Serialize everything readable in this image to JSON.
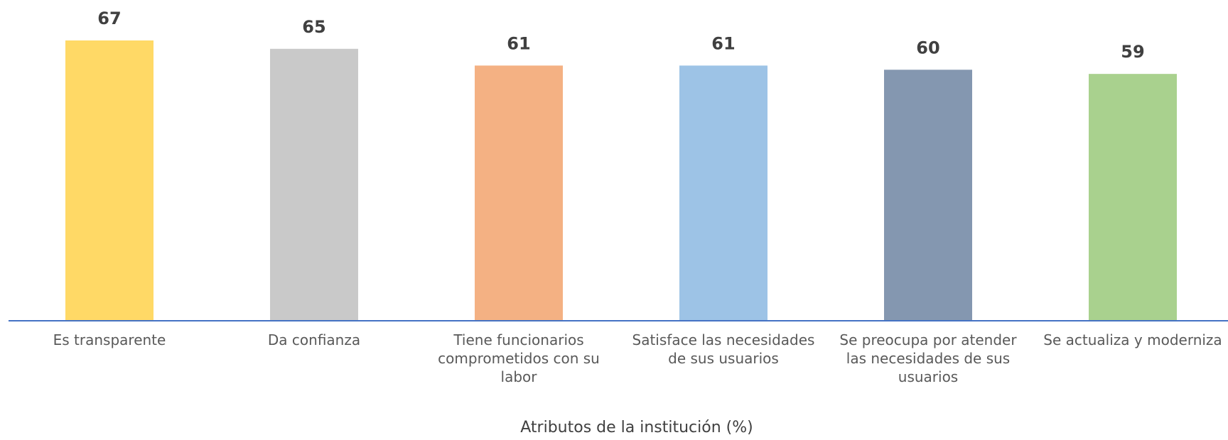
{
  "chart_data": {
    "type": "bar",
    "categories": [
      "Es transparente",
      "Da confianza",
      "Tiene funcionarios comprometidos con su labor",
      "Satisface las necesidades de sus usuarios",
      "Se preocupa por atender las necesidades de sus usuarios",
      "Se actualiza y moderniza"
    ],
    "values": [
      67,
      65,
      61,
      61,
      60,
      59
    ],
    "colors": [
      "#FFD966",
      "#C9C9C9",
      "#F4B183",
      "#9DC3E6",
      "#8497B0",
      "#A9D18E"
    ],
    "x_label": "Atributos de la institución (%)"
  }
}
